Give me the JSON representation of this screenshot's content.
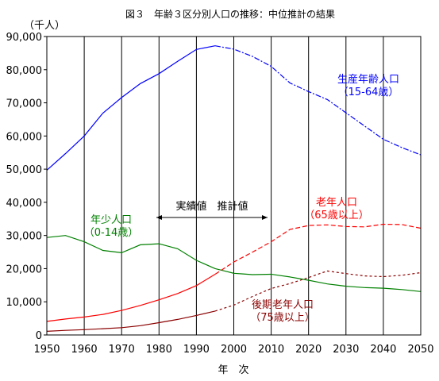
{
  "chart_data": {
    "type": "line",
    "title": "図３　年齢３区分別人口の推移：中位推計の結果",
    "ylabel": "（千人）",
    "xlabel": "年　次",
    "xlim": [
      1950,
      2050
    ],
    "ylim": [
      0,
      90000
    ],
    "x_ticks": [
      "1950",
      "1960",
      "1970",
      "1980",
      "1990",
      "2000",
      "2010",
      "2020",
      "2030",
      "2040",
      "2050"
    ],
    "y_ticks": [
      "0",
      "10,000",
      "20,000",
      "30,000",
      "40,000",
      "50,000",
      "60,000",
      "70,000",
      "80,000",
      "90,000"
    ],
    "grid": "vertical",
    "actual_last_year": 1995,
    "divider_label": "実績値　推計値",
    "series": [
      {
        "key": "working",
        "label": "生産年齢人口",
        "sublabel": "（15-64歳）",
        "color": "#0000ff",
        "points": [
          [
            1950,
            49700
          ],
          [
            1955,
            54700
          ],
          [
            1960,
            60000
          ],
          [
            1965,
            66900
          ],
          [
            1970,
            71600
          ],
          [
            1975,
            75800
          ],
          [
            1980,
            78800
          ],
          [
            1985,
            82500
          ],
          [
            1990,
            86100
          ],
          [
            1995,
            87200
          ],
          [
            2000,
            86200
          ],
          [
            2005,
            84000
          ],
          [
            2010,
            81000
          ],
          [
            2015,
            76000
          ],
          [
            2020,
            73400
          ],
          [
            2025,
            71000
          ],
          [
            2030,
            67000
          ],
          [
            2035,
            63000
          ],
          [
            2040,
            59000
          ],
          [
            2045,
            56500
          ],
          [
            2050,
            54300
          ]
        ]
      },
      {
        "key": "youth",
        "label": "年少人口",
        "sublabel": "（0-14歳）",
        "color": "#008000",
        "points": [
          [
            1950,
            29400
          ],
          [
            1955,
            30000
          ],
          [
            1960,
            28100
          ],
          [
            1965,
            25500
          ],
          [
            1970,
            24800
          ],
          [
            1975,
            27200
          ],
          [
            1980,
            27500
          ],
          [
            1985,
            26000
          ],
          [
            1990,
            22500
          ],
          [
            1995,
            20000
          ],
          [
            2000,
            18600
          ],
          [
            2005,
            18200
          ],
          [
            2010,
            18300
          ],
          [
            2015,
            17500
          ],
          [
            2020,
            16500
          ],
          [
            2025,
            15400
          ],
          [
            2030,
            14700
          ],
          [
            2035,
            14300
          ],
          [
            2040,
            14100
          ],
          [
            2045,
            13700
          ],
          [
            2050,
            13100
          ]
        ]
      },
      {
        "key": "elderly",
        "label": "老年人口",
        "sublabel": "（65歳以上）",
        "color": "#ff0000",
        "points": [
          [
            1950,
            4100
          ],
          [
            1955,
            4800
          ],
          [
            1960,
            5400
          ],
          [
            1965,
            6200
          ],
          [
            1970,
            7400
          ],
          [
            1975,
            8900
          ],
          [
            1980,
            10600
          ],
          [
            1985,
            12500
          ],
          [
            1990,
            14900
          ],
          [
            1995,
            18300
          ],
          [
            2000,
            22000
          ],
          [
            2005,
            25000
          ],
          [
            2010,
            28100
          ],
          [
            2015,
            31800
          ],
          [
            2020,
            33000
          ],
          [
            2025,
            33200
          ],
          [
            2030,
            32700
          ],
          [
            2035,
            32600
          ],
          [
            2040,
            33400
          ],
          [
            2045,
            33300
          ],
          [
            2050,
            32200
          ]
        ]
      },
      {
        "key": "late_elderly",
        "label": "後期老年人口",
        "sublabel": "（75歳以上）",
        "color": "#8b0000",
        "points": [
          [
            1950,
            1100
          ],
          [
            1955,
            1400
          ],
          [
            1960,
            1600
          ],
          [
            1965,
            1900
          ],
          [
            1970,
            2200
          ],
          [
            1975,
            2800
          ],
          [
            1980,
            3700
          ],
          [
            1985,
            4700
          ],
          [
            1990,
            5900
          ],
          [
            1995,
            7200
          ],
          [
            2000,
            9000
          ],
          [
            2005,
            11600
          ],
          [
            2010,
            14000
          ],
          [
            2015,
            15500
          ],
          [
            2020,
            17300
          ],
          [
            2025,
            19300
          ],
          [
            2030,
            18500
          ],
          [
            2035,
            17800
          ],
          [
            2040,
            17600
          ],
          [
            2045,
            18000
          ],
          [
            2050,
            18800
          ]
        ]
      }
    ]
  }
}
